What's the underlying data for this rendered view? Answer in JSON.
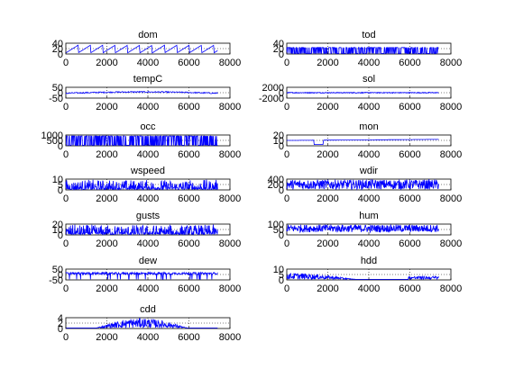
{
  "figure": {
    "background": "#ffffff",
    "line_color": "#0000ff",
    "grid_style": "dotted"
  },
  "chart_data": [
    {
      "type": "line",
      "title": "dom",
      "xlim": [
        0,
        8000
      ],
      "x_ticks": [
        "0",
        "2000",
        "4000",
        "6000",
        "8000"
      ],
      "y_ticks": [
        "0",
        "20",
        "40"
      ],
      "ylim": [
        0,
        40
      ],
      "grid": true,
      "series": [
        {
          "pattern": "sawtooth",
          "x_end": 7400
        }
      ]
    },
    {
      "type": "line",
      "title": "tod",
      "xlim": [
        0,
        8000
      ],
      "x_ticks": [
        "0",
        "2000",
        "4000",
        "6000",
        "8000"
      ],
      "y_ticks": [
        "0",
        "20",
        "40"
      ],
      "ylim": [
        0,
        40
      ],
      "grid": true,
      "series": [
        {
          "pattern": "dense",
          "x_end": 7400
        }
      ]
    },
    {
      "type": "line",
      "title": "tempC",
      "xlim": [
        0,
        8000
      ],
      "x_ticks": [
        "0",
        "2000",
        "4000",
        "6000",
        "8000"
      ],
      "y_ticks": [
        "-50",
        "0",
        "50"
      ],
      "ylim": [
        -50,
        50
      ],
      "grid": true,
      "series": [
        {
          "pattern": "seasonal",
          "x_end": 7400
        }
      ]
    },
    {
      "type": "line",
      "title": "sol",
      "xlim": [
        0,
        8000
      ],
      "x_ticks": [
        "0",
        "2000",
        "4000",
        "6000",
        "8000"
      ],
      "y_ticks": [
        "-2000",
        "0",
        "2000"
      ],
      "ylim": [
        -2000,
        2000
      ],
      "grid": true,
      "series": [
        {
          "pattern": "flat-noise",
          "x_end": 7400
        }
      ]
    },
    {
      "type": "line",
      "title": "occ",
      "xlim": [
        0,
        8000
      ],
      "x_ticks": [
        "0",
        "2000",
        "4000",
        "6000",
        "8000"
      ],
      "y_ticks": [
        "0",
        "500",
        "1000"
      ],
      "ylim": [
        0,
        1000
      ],
      "grid": true,
      "series": [
        {
          "pattern": "binary",
          "x_end": 7400
        }
      ]
    },
    {
      "type": "line",
      "title": "mon",
      "xlim": [
        0,
        8000
      ],
      "x_ticks": [
        "0",
        "2000",
        "4000",
        "6000",
        "8000"
      ],
      "y_ticks": [
        "0",
        "10",
        "20"
      ],
      "ylim": [
        0,
        20
      ],
      "grid": true,
      "series": [
        {
          "pattern": "steps",
          "x_end": 7400
        }
      ]
    },
    {
      "type": "line",
      "title": "wspeed",
      "xlim": [
        0,
        8000
      ],
      "x_ticks": [
        "0",
        "2000",
        "4000",
        "6000",
        "8000"
      ],
      "y_ticks": [
        "0",
        "5",
        "10"
      ],
      "ylim": [
        0,
        10
      ],
      "grid": true,
      "series": [
        {
          "pattern": "spiky",
          "x_end": 7400
        }
      ]
    },
    {
      "type": "line",
      "title": "wdir",
      "xlim": [
        0,
        8000
      ],
      "x_ticks": [
        "0",
        "2000",
        "4000",
        "6000",
        "8000"
      ],
      "y_ticks": [
        "0",
        "200",
        "400"
      ],
      "ylim": [
        0,
        400
      ],
      "grid": true,
      "series": [
        {
          "pattern": "noise-full",
          "x_end": 7400
        }
      ]
    },
    {
      "type": "line",
      "title": "gusts",
      "xlim": [
        0,
        8000
      ],
      "x_ticks": [
        "0",
        "2000",
        "4000",
        "6000",
        "8000"
      ],
      "y_ticks": [
        "0",
        "10",
        "20"
      ],
      "ylim": [
        0,
        20
      ],
      "grid": true,
      "series": [
        {
          "pattern": "spiky",
          "x_end": 7400
        }
      ]
    },
    {
      "type": "line",
      "title": "hum",
      "xlim": [
        0,
        8000
      ],
      "x_ticks": [
        "0",
        "2000",
        "4000",
        "6000",
        "8000"
      ],
      "y_ticks": [
        "0",
        "50",
        "100"
      ],
      "ylim": [
        0,
        100
      ],
      "grid": true,
      "series": [
        {
          "pattern": "noise-high",
          "x_end": 7400
        }
      ]
    },
    {
      "type": "line",
      "title": "dew",
      "xlim": [
        0,
        8000
      ],
      "x_ticks": [
        "0",
        "2000",
        "4000",
        "6000",
        "8000"
      ],
      "y_ticks": [
        "-50",
        "0",
        "50"
      ],
      "ylim": [
        -50,
        50
      ],
      "grid": true,
      "series": [
        {
          "pattern": "drops",
          "x_end": 7400
        }
      ]
    },
    {
      "type": "line",
      "title": "hdd",
      "xlim": [
        0,
        8000
      ],
      "x_ticks": [
        "0",
        "2000",
        "4000",
        "6000",
        "8000"
      ],
      "y_ticks": [
        "0",
        "5",
        "10"
      ],
      "ylim": [
        0,
        10
      ],
      "grid": true,
      "series": [
        {
          "pattern": "decay-early",
          "x_end": 7400
        }
      ]
    },
    {
      "type": "line",
      "title": "cdd",
      "xlim": [
        0,
        8000
      ],
      "x_ticks": [
        "0",
        "2000",
        "4000",
        "6000",
        "8000"
      ],
      "y_ticks": [
        "0",
        "2",
        "4"
      ],
      "ylim": [
        0,
        4
      ],
      "grid": true,
      "series": [
        {
          "pattern": "hump-middle",
          "x_end": 7400
        }
      ]
    }
  ]
}
